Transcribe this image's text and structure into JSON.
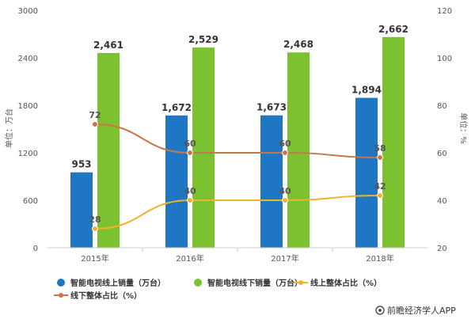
{
  "chart_data": {
    "type": "bar",
    "categories": [
      "2015年",
      "2016年",
      "2017年",
      "2018年"
    ],
    "ylabel_left": "单位：万台",
    "ylabel_right": "单位：%",
    "ylim_left": [
      0,
      3000
    ],
    "yticks_left": [
      0,
      600,
      1200,
      1800,
      2400,
      3000
    ],
    "ylim_right": [
      20,
      120
    ],
    "yticks_right": [
      20,
      40,
      60,
      80,
      100,
      120
    ],
    "series": [
      {
        "name": "智能电视线上销量（万台）",
        "kind": "bar",
        "axis": "left",
        "color": "#1f77c4",
        "values": [
          953,
          1672,
          1673,
          1894
        ],
        "labels": [
          "953",
          "1,672",
          "1,673",
          "1,894"
        ]
      },
      {
        "name": "智能电视线下销量（万台）",
        "kind": "bar",
        "axis": "left",
        "color": "#7cc230",
        "values": [
          2461,
          2529,
          2468,
          2662
        ],
        "labels": [
          "2,461",
          "2,529",
          "2,468",
          "2,662"
        ]
      },
      {
        "name": "线上整体占比（%）",
        "kind": "line",
        "axis": "right",
        "color": "#f3b22c",
        "values": [
          28,
          40,
          40,
          42
        ],
        "labels": [
          "28",
          "40",
          "40",
          "42"
        ]
      },
      {
        "name": "线下整体占比（%）",
        "kind": "line",
        "axis": "right",
        "color": "#c8774a",
        "values": [
          72,
          60,
          60,
          58
        ],
        "labels": [
          "72",
          "60",
          "60",
          "58"
        ]
      }
    ],
    "grid": false,
    "legend": "bottom"
  },
  "credit": "前瞻经济学人APP"
}
